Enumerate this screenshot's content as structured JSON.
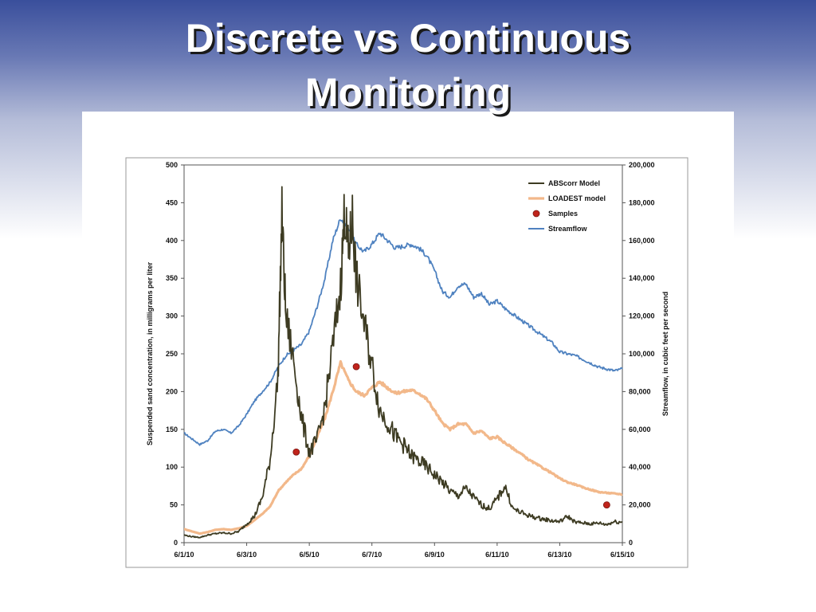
{
  "slide": {
    "title_line1": "Discrete vs Continuous",
    "title_line2": "Monitoring"
  },
  "colors": {
    "abscorr": "#3d3b22",
    "loadest": "#f2b88a",
    "samples": "#c0241c",
    "streamflow": "#4f82c0"
  },
  "chart_data": {
    "type": "line",
    "x_label": "",
    "y_left_label": "Suspended sand concentration, in milligrams per liter",
    "y_right_label": "Streamflow, in cubic feet per second",
    "x_range_days": [
      "6/1/10",
      "6/15/10"
    ],
    "x_ticks": [
      "6/1/10",
      "6/3/10",
      "6/5/10",
      "6/7/10",
      "6/9/10",
      "6/11/10",
      "6/13/10",
      "6/15/10"
    ],
    "y_left_range": [
      0,
      500
    ],
    "y_left_ticks": [
      "0",
      "50",
      "100",
      "150",
      "200",
      "250",
      "300",
      "350",
      "400",
      "450",
      "500"
    ],
    "y_right_range": [
      0,
      200000
    ],
    "y_right_ticks": [
      "0",
      "20,000",
      "40,000",
      "60,000",
      "80,000",
      "100,000",
      "120,000",
      "140,000",
      "160,000",
      "180,000",
      "200,000"
    ],
    "legend": {
      "position": "top-right",
      "entries": [
        {
          "name": "ABScorr Model",
          "style": "line"
        },
        {
          "name": "LOADEST model",
          "style": "line"
        },
        {
          "name": "Samples",
          "style": "marker"
        },
        {
          "name": "Streamflow",
          "style": "line"
        }
      ]
    },
    "series": [
      {
        "name": "Streamflow",
        "axis": "right",
        "points": [
          {
            "x": "6/1/10 00:00",
            "y": 58000
          },
          {
            "x": "6/1/10 06:00",
            "y": 55000
          },
          {
            "x": "6/1/10 12:00",
            "y": 52000
          },
          {
            "x": "6/1/10 18:00",
            "y": 54000
          },
          {
            "x": "6/2/10 00:00",
            "y": 59000
          },
          {
            "x": "6/2/10 06:00",
            "y": 60000
          },
          {
            "x": "6/2/10 12:00",
            "y": 58000
          },
          {
            "x": "6/2/10 18:00",
            "y": 62000
          },
          {
            "x": "6/3/10 00:00",
            "y": 68000
          },
          {
            "x": "6/3/10 06:00",
            "y": 75000
          },
          {
            "x": "6/3/10 12:00",
            "y": 80000
          },
          {
            "x": "6/3/10 18:00",
            "y": 85000
          },
          {
            "x": "6/4/10 00:00",
            "y": 93000
          },
          {
            "x": "6/4/10 06:00",
            "y": 99000
          },
          {
            "x": "6/4/10 12:00",
            "y": 102000
          },
          {
            "x": "6/4/10 18:00",
            "y": 105000
          },
          {
            "x": "6/5/10 00:00",
            "y": 112000
          },
          {
            "x": "6/5/10 06:00",
            "y": 125000
          },
          {
            "x": "6/5/10 12:00",
            "y": 140000
          },
          {
            "x": "6/5/10 18:00",
            "y": 160000
          },
          {
            "x": "6/6/10 00:00",
            "y": 172000
          },
          {
            "x": "6/6/10 06:00",
            "y": 166000
          },
          {
            "x": "6/6/10 12:00",
            "y": 158000
          },
          {
            "x": "6/6/10 18:00",
            "y": 154000
          },
          {
            "x": "6/7/10 00:00",
            "y": 158000
          },
          {
            "x": "6/7/10 06:00",
            "y": 164000
          },
          {
            "x": "6/7/10 12:00",
            "y": 160000
          },
          {
            "x": "6/7/10 18:00",
            "y": 156000
          },
          {
            "x": "6/8/10 00:00",
            "y": 157000
          },
          {
            "x": "6/8/10 06:00",
            "y": 158000
          },
          {
            "x": "6/8/10 12:00",
            "y": 156000
          },
          {
            "x": "6/8/10 18:00",
            "y": 152000
          },
          {
            "x": "6/9/10 00:00",
            "y": 144000
          },
          {
            "x": "6/9/10 06:00",
            "y": 133000
          },
          {
            "x": "6/9/10 12:00",
            "y": 130000
          },
          {
            "x": "6/9/10 18:00",
            "y": 136000
          },
          {
            "x": "6/10/10 00:00",
            "y": 137000
          },
          {
            "x": "6/10/10 06:00",
            "y": 130000
          },
          {
            "x": "6/10/10 12:00",
            "y": 132000
          },
          {
            "x": "6/10/10 18:00",
            "y": 126000
          },
          {
            "x": "6/11/10 00:00",
            "y": 128000
          },
          {
            "x": "6/11/10 06:00",
            "y": 124000
          },
          {
            "x": "6/11/10 12:00",
            "y": 121000
          },
          {
            "x": "6/11/10 18:00",
            "y": 118000
          },
          {
            "x": "6/12/10 00:00",
            "y": 115000
          },
          {
            "x": "6/12/10 06:00",
            "y": 112000
          },
          {
            "x": "6/12/10 12:00",
            "y": 109000
          },
          {
            "x": "6/12/10 18:00",
            "y": 106000
          },
          {
            "x": "6/13/10 00:00",
            "y": 101000
          },
          {
            "x": "6/13/10 06:00",
            "y": 100000
          },
          {
            "x": "6/13/10 12:00",
            "y": 99000
          },
          {
            "x": "6/13/10 18:00",
            "y": 97000
          },
          {
            "x": "6/14/10 00:00",
            "y": 95000
          },
          {
            "x": "6/14/10 06:00",
            "y": 93000
          },
          {
            "x": "6/14/10 12:00",
            "y": 92000
          },
          {
            "x": "6/14/10 18:00",
            "y": 91000
          },
          {
            "x": "6/15/10 00:00",
            "y": 92000
          }
        ]
      },
      {
        "name": "LOADEST model",
        "axis": "left",
        "points": [
          {
            "x": "6/1/10 00:00",
            "y": 18
          },
          {
            "x": "6/1/10 06:00",
            "y": 15
          },
          {
            "x": "6/1/10 12:00",
            "y": 12
          },
          {
            "x": "6/1/10 18:00",
            "y": 14
          },
          {
            "x": "6/2/10 00:00",
            "y": 17
          },
          {
            "x": "6/2/10 06:00",
            "y": 18
          },
          {
            "x": "6/2/10 12:00",
            "y": 17
          },
          {
            "x": "6/2/10 18:00",
            "y": 19
          },
          {
            "x": "6/3/10 00:00",
            "y": 22
          },
          {
            "x": "6/3/10 06:00",
            "y": 30
          },
          {
            "x": "6/3/10 12:00",
            "y": 38
          },
          {
            "x": "6/3/10 18:00",
            "y": 48
          },
          {
            "x": "6/4/10 00:00",
            "y": 68
          },
          {
            "x": "6/4/10 06:00",
            "y": 80
          },
          {
            "x": "6/4/10 12:00",
            "y": 90
          },
          {
            "x": "6/4/10 18:00",
            "y": 98
          },
          {
            "x": "6/5/10 00:00",
            "y": 115
          },
          {
            "x": "6/5/10 06:00",
            "y": 140
          },
          {
            "x": "6/5/10 12:00",
            "y": 165
          },
          {
            "x": "6/5/10 18:00",
            "y": 200
          },
          {
            "x": "6/6/10 00:00",
            "y": 238
          },
          {
            "x": "6/6/10 06:00",
            "y": 215
          },
          {
            "x": "6/6/10 12:00",
            "y": 200
          },
          {
            "x": "6/6/10 18:00",
            "y": 195
          },
          {
            "x": "6/7/10 00:00",
            "y": 205
          },
          {
            "x": "6/7/10 06:00",
            "y": 213
          },
          {
            "x": "6/7/10 12:00",
            "y": 205
          },
          {
            "x": "6/7/10 18:00",
            "y": 198
          },
          {
            "x": "6/8/10 00:00",
            "y": 200
          },
          {
            "x": "6/8/10 06:00",
            "y": 202
          },
          {
            "x": "6/8/10 12:00",
            "y": 198
          },
          {
            "x": "6/8/10 18:00",
            "y": 190
          },
          {
            "x": "6/9/10 00:00",
            "y": 175
          },
          {
            "x": "6/9/10 06:00",
            "y": 158
          },
          {
            "x": "6/9/10 12:00",
            "y": 150
          },
          {
            "x": "6/9/10 18:00",
            "y": 157
          },
          {
            "x": "6/10/10 00:00",
            "y": 157
          },
          {
            "x": "6/10/10 06:00",
            "y": 145
          },
          {
            "x": "6/10/10 12:00",
            "y": 148
          },
          {
            "x": "6/10/10 18:00",
            "y": 138
          },
          {
            "x": "6/11/10 00:00",
            "y": 140
          },
          {
            "x": "6/11/10 06:00",
            "y": 132
          },
          {
            "x": "6/11/10 12:00",
            "y": 125
          },
          {
            "x": "6/11/10 18:00",
            "y": 118
          },
          {
            "x": "6/12/10 00:00",
            "y": 110
          },
          {
            "x": "6/12/10 06:00",
            "y": 104
          },
          {
            "x": "6/12/10 12:00",
            "y": 98
          },
          {
            "x": "6/12/10 18:00",
            "y": 92
          },
          {
            "x": "6/13/10 00:00",
            "y": 85
          },
          {
            "x": "6/13/10 06:00",
            "y": 80
          },
          {
            "x": "6/13/10 12:00",
            "y": 77
          },
          {
            "x": "6/13/10 18:00",
            "y": 73
          },
          {
            "x": "6/14/10 00:00",
            "y": 70
          },
          {
            "x": "6/14/10 06:00",
            "y": 67
          },
          {
            "x": "6/14/10 12:00",
            "y": 66
          },
          {
            "x": "6/14/10 18:00",
            "y": 65
          },
          {
            "x": "6/15/10 00:00",
            "y": 64
          }
        ]
      },
      {
        "name": "ABScorr Model",
        "axis": "left",
        "points": [
          {
            "x": "6/1/10 00:00",
            "y": 10
          },
          {
            "x": "6/1/10 06:00",
            "y": 8
          },
          {
            "x": "6/1/10 12:00",
            "y": 7
          },
          {
            "x": "6/1/10 18:00",
            "y": 10
          },
          {
            "x": "6/2/10 00:00",
            "y": 12
          },
          {
            "x": "6/2/10 06:00",
            "y": 13
          },
          {
            "x": "6/2/10 12:00",
            "y": 12
          },
          {
            "x": "6/2/10 18:00",
            "y": 15
          },
          {
            "x": "6/3/10 00:00",
            "y": 25
          },
          {
            "x": "6/3/10 06:00",
            "y": 35
          },
          {
            "x": "6/3/10 12:00",
            "y": 60
          },
          {
            "x": "6/3/10 18:00",
            "y": 110
          },
          {
            "x": "6/4/10 00:00",
            "y": 220
          },
          {
            "x": "6/4/10 03:00",
            "y": 435
          },
          {
            "x": "6/4/10 06:00",
            "y": 300
          },
          {
            "x": "6/4/10 12:00",
            "y": 240
          },
          {
            "x": "6/4/10 18:00",
            "y": 165
          },
          {
            "x": "6/5/10 00:00",
            "y": 120
          },
          {
            "x": "6/5/10 06:00",
            "y": 135
          },
          {
            "x": "6/5/10 12:00",
            "y": 180
          },
          {
            "x": "6/5/10 18:00",
            "y": 260
          },
          {
            "x": "6/6/10 00:00",
            "y": 340
          },
          {
            "x": "6/6/10 03:00",
            "y": 440
          },
          {
            "x": "6/6/10 06:00",
            "y": 380
          },
          {
            "x": "6/6/10 09:00",
            "y": 430
          },
          {
            "x": "6/6/10 12:00",
            "y": 350
          },
          {
            "x": "6/6/10 18:00",
            "y": 290
          },
          {
            "x": "6/7/10 00:00",
            "y": 235
          },
          {
            "x": "6/7/10 06:00",
            "y": 175
          },
          {
            "x": "6/7/10 12:00",
            "y": 160
          },
          {
            "x": "6/7/10 18:00",
            "y": 140
          },
          {
            "x": "6/8/10 00:00",
            "y": 130
          },
          {
            "x": "6/8/10 06:00",
            "y": 115
          },
          {
            "x": "6/8/10 12:00",
            "y": 108
          },
          {
            "x": "6/8/10 18:00",
            "y": 100
          },
          {
            "x": "6/9/10 00:00",
            "y": 90
          },
          {
            "x": "6/9/10 06:00",
            "y": 80
          },
          {
            "x": "6/9/10 12:00",
            "y": 68
          },
          {
            "x": "6/9/10 18:00",
            "y": 62
          },
          {
            "x": "6/10/10 00:00",
            "y": 72
          },
          {
            "x": "6/10/10 06:00",
            "y": 60
          },
          {
            "x": "6/10/10 12:00",
            "y": 50
          },
          {
            "x": "6/10/10 18:00",
            "y": 45
          },
          {
            "x": "6/11/10 00:00",
            "y": 58
          },
          {
            "x": "6/11/10 06:00",
            "y": 75
          },
          {
            "x": "6/11/10 12:00",
            "y": 45
          },
          {
            "x": "6/11/10 18:00",
            "y": 40
          },
          {
            "x": "6/12/10 00:00",
            "y": 36
          },
          {
            "x": "6/12/10 06:00",
            "y": 33
          },
          {
            "x": "6/12/10 12:00",
            "y": 31
          },
          {
            "x": "6/12/10 18:00",
            "y": 29
          },
          {
            "x": "6/13/10 00:00",
            "y": 28
          },
          {
            "x": "6/13/10 06:00",
            "y": 35
          },
          {
            "x": "6/13/10 12:00",
            "y": 27
          },
          {
            "x": "6/13/10 18:00",
            "y": 26
          },
          {
            "x": "6/14/10 00:00",
            "y": 25
          },
          {
            "x": "6/14/10 06:00",
            "y": 26
          },
          {
            "x": "6/14/10 12:00",
            "y": 24
          },
          {
            "x": "6/14/10 18:00",
            "y": 28
          },
          {
            "x": "6/15/10 00:00",
            "y": 27
          }
        ]
      },
      {
        "name": "Samples",
        "axis": "left",
        "type": "scatter",
        "points": [
          {
            "x": "6/4/10 14:00",
            "y": 120
          },
          {
            "x": "6/6/10 12:00",
            "y": 233
          },
          {
            "x": "6/14/10 12:00",
            "y": 50
          }
        ]
      }
    ]
  }
}
